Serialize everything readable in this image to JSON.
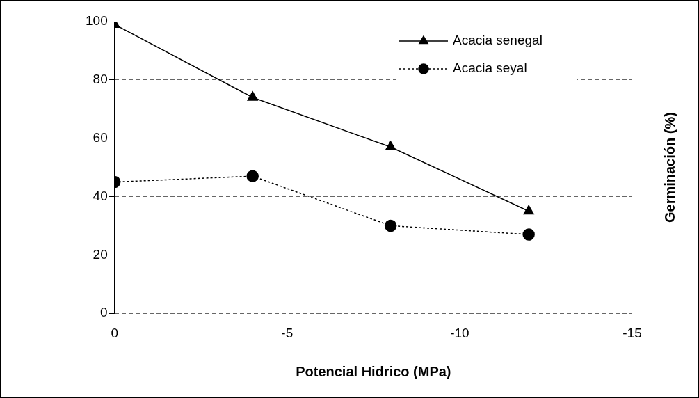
{
  "chart_data": {
    "type": "line",
    "xlabel": "Potencial Hidrico (MPa)",
    "ylabel": "Germinación (%)",
    "x": [
      0,
      -4,
      -8,
      -12
    ],
    "series": [
      {
        "name": "Acacia senegal",
        "color": "#000000",
        "values": [
          99,
          74,
          57,
          35
        ],
        "marker": "triangle",
        "line_style": "solid"
      },
      {
        "name": "Acacia seyal",
        "color": "#000000",
        "values": [
          45,
          47,
          30,
          27
        ],
        "marker": "circle",
        "line_style": "dotted"
      }
    ],
    "xlim": [
      0,
      -15
    ],
    "xticks": [
      0,
      -5,
      -10,
      -15
    ],
    "ylim": [
      0,
      100
    ],
    "yticks": [
      0,
      20,
      40,
      60,
      80,
      100
    ],
    "grid": "y",
    "legend": "top right"
  }
}
